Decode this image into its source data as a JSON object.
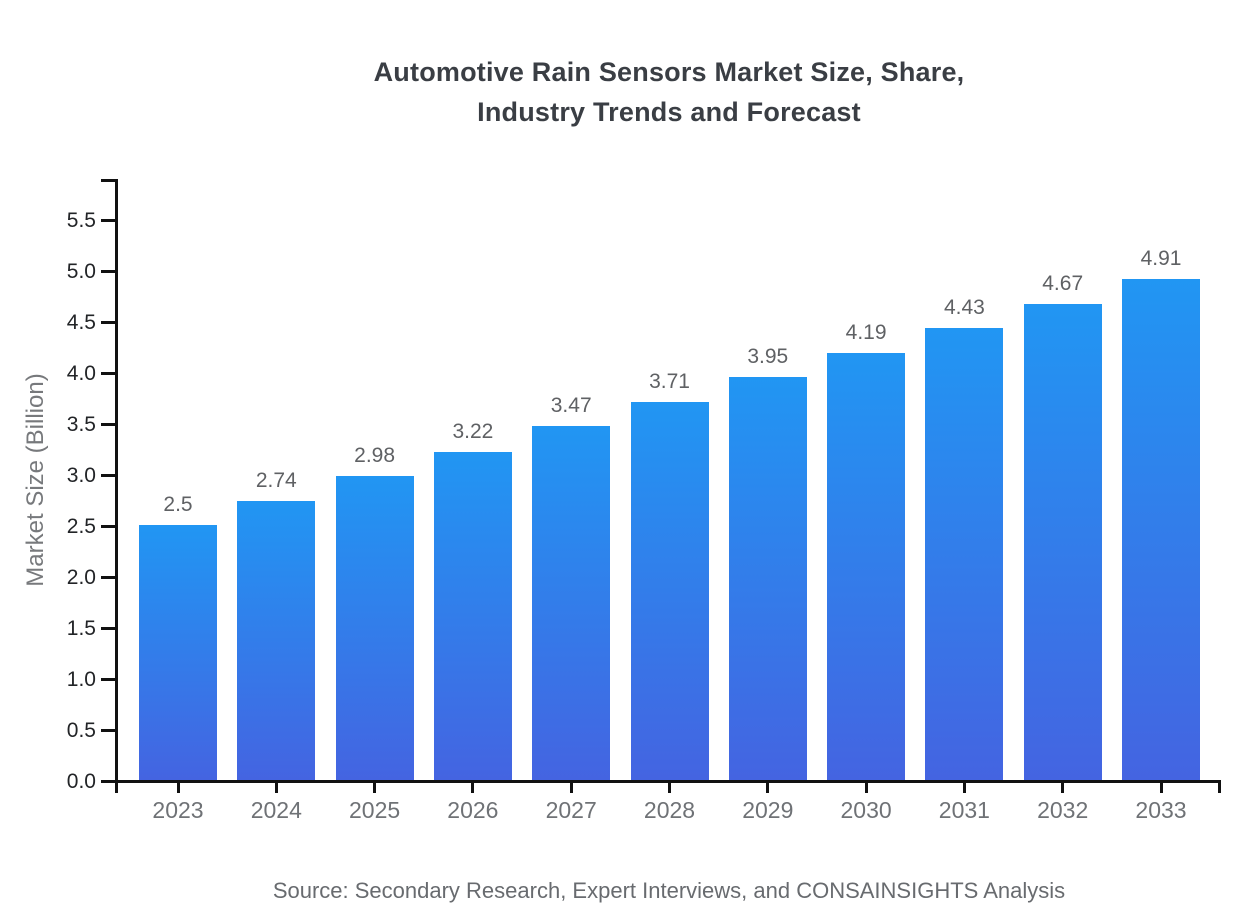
{
  "figure": {
    "title": "Automotive Rain Sensors Market Size, Share,\nIndustry Trends and Forecast",
    "source_note": "Source: Secondary Research, Expert Interviews, and CONSAINSIGHTS Analysis"
  },
  "chart_data": {
    "type": "bar",
    "title": "Automotive Rain Sensors Market Size, Share, Industry Trends and Forecast",
    "categories": [
      "2023",
      "2024",
      "2025",
      "2026",
      "2027",
      "2028",
      "2029",
      "2030",
      "2031",
      "2032",
      "2033"
    ],
    "values": [
      2.5,
      2.74,
      2.98,
      3.22,
      3.47,
      3.71,
      3.95,
      4.19,
      4.43,
      4.67,
      4.91
    ],
    "value_labels": [
      "2.5",
      "2.74",
      "2.98",
      "3.22",
      "3.47",
      "3.71",
      "3.95",
      "4.19",
      "4.43",
      "4.67",
      "4.91"
    ],
    "xlabel": "",
    "ylabel": "Market Size (Billion)",
    "ylim": [
      0,
      5.9
    ],
    "ytick_labels": [
      "0.0",
      "0.5",
      "1.0",
      "1.5",
      "2.0",
      "2.5",
      "3.0",
      "3.5",
      "4.0",
      "4.5",
      "5.0",
      "5.5"
    ],
    "grid": false,
    "legend": "none",
    "bar_count": 11,
    "colors": {
      "bar_gradient_top": "#2196f3",
      "bar_gradient_bottom": "#4464e1",
      "axis": "#111111",
      "y_tick_label": "#222427",
      "x_tick_label": "#6f7276",
      "value_label": "#5f6164",
      "axis_title": "#77797c",
      "title": "#3a3e44",
      "source_text": "#686b6f"
    }
  }
}
